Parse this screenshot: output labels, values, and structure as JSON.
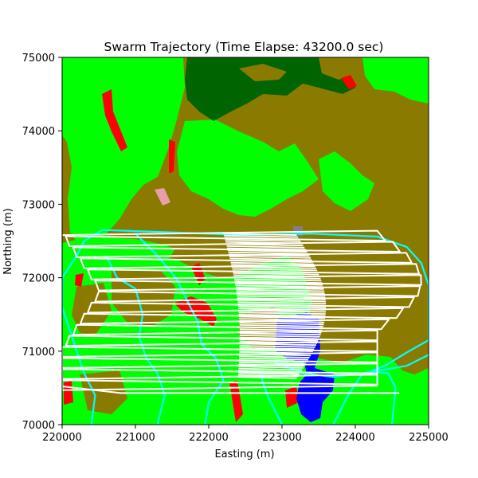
{
  "chart_data": {
    "type": "map",
    "title": "Swarm Trajectory (Time Elapse: 43200.0 sec)",
    "xlabel": "Easting (m)",
    "ylabel": "Northing (m)",
    "xlim": [
      220000,
      225000
    ],
    "ylim": [
      70000,
      75000
    ],
    "x_ticks": [
      220000,
      221000,
      222000,
      223000,
      224000,
      225000
    ],
    "y_ticks": [
      70000,
      71000,
      72000,
      73000,
      74000,
      75000
    ],
    "x_tick_labels": [
      "220000",
      "221000",
      "222000",
      "223000",
      "224000",
      "225000"
    ],
    "y_tick_labels": [
      "70000",
      "71000",
      "72000",
      "73000",
      "74000",
      "75000"
    ],
    "grid": false,
    "legend": "none",
    "landcover_colors": {
      "olive": "#8b7a00",
      "green": "#00ff00",
      "dark_green": "#006400",
      "red": "#ff0000",
      "blue": "#0000ff",
      "pink": "#e8a0a8",
      "gray": "#808080"
    },
    "boundary_color": "#00ffff",
    "trajectory_color": "#ffffff",
    "trajectory": {
      "west_easting": [
        220000,
        220050,
        220100,
        220150,
        220200,
        220250,
        220300,
        220350,
        220400,
        220450,
        220500,
        220500,
        220450,
        220400,
        220350,
        220300,
        220250,
        220200,
        220150,
        220100,
        220050,
        220000,
        220000,
        220000,
        220000,
        220000,
        220000,
        220000,
        220000
      ],
      "east_easting_top": 224300,
      "east_easting_bottom": 224900,
      "north_start": 72580,
      "north_end": 70470,
      "sweep_count": 29,
      "dense_band": {
        "easting_min": 222200,
        "easting_max": 223500,
        "northing_min": 70650,
        "northing_max": 72600
      }
    },
    "boundaries": [
      {
        "name": "outer",
        "points": [
          [
            220550,
            72650
          ],
          [
            221400,
            72620
          ],
          [
            222500,
            72580
          ],
          [
            223400,
            72600
          ],
          [
            224300,
            72560
          ],
          [
            224700,
            72420
          ],
          [
            224900,
            72200
          ],
          [
            225000,
            71900
          ],
          [
            225000,
            71150
          ],
          [
            224700,
            70980
          ],
          [
            224400,
            70800
          ],
          [
            224200,
            70720
          ],
          [
            224450,
            70700
          ],
          [
            224550,
            70500
          ],
          [
            224500,
            70000
          ]
        ]
      },
      {
        "name": "west",
        "points": [
          [
            220550,
            72650
          ],
          [
            220300,
            72500
          ],
          [
            220200,
            72300
          ],
          [
            220000,
            72000
          ],
          [
            220000,
            71600
          ],
          [
            220100,
            71300
          ],
          [
            220200,
            71000
          ],
          [
            220300,
            70700
          ],
          [
            220450,
            70400
          ],
          [
            220400,
            70000
          ]
        ]
      },
      {
        "name": "inner-west",
        "points": [
          [
            220600,
            72300
          ],
          [
            220750,
            72000
          ],
          [
            221000,
            71850
          ],
          [
            221100,
            71500
          ],
          [
            221050,
            71200
          ],
          [
            221150,
            70900
          ],
          [
            221300,
            70700
          ],
          [
            221400,
            70400
          ],
          [
            221300,
            70000
          ]
        ]
      },
      {
        "name": "inner-middle",
        "points": [
          [
            221000,
            72600
          ],
          [
            221300,
            72300
          ],
          [
            221550,
            72000
          ],
          [
            221700,
            71700
          ],
          [
            221850,
            71400
          ],
          [
            221900,
            71100
          ],
          [
            222100,
            70900
          ],
          [
            222200,
            70600
          ],
          [
            222000,
            70300
          ],
          [
            221950,
            70000
          ]
        ]
      },
      {
        "name": "river",
        "points": [
          [
            222900,
            70850
          ],
          [
            223300,
            70700
          ],
          [
            223700,
            70650
          ],
          [
            224100,
            70700
          ],
          [
            224400,
            70750
          ],
          [
            224700,
            70800
          ],
          [
            225000,
            70950
          ]
        ]
      },
      {
        "name": "south-east",
        "points": [
          [
            224100,
            70700
          ],
          [
            223900,
            70400
          ],
          [
            223800,
            70200
          ],
          [
            223700,
            70000
          ]
        ]
      },
      {
        "name": "south",
        "points": [
          [
            222700,
            70700
          ],
          [
            222800,
            70400
          ],
          [
            222900,
            70200
          ],
          [
            223000,
            70000
          ]
        ]
      }
    ]
  }
}
